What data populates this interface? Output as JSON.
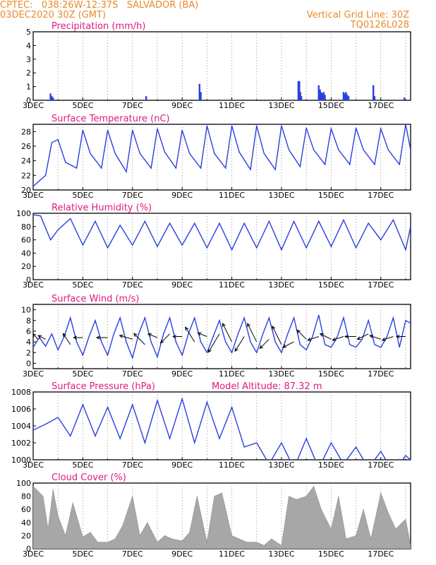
{
  "header": {
    "line1": "CPTEC:   038:26W-12:37S   SALVADOR (BA)",
    "line2": "03DEC2020 30Z (GMT)",
    "grid_note": "Vertical Grid Line: 30Z",
    "code": "TQ0126L028"
  },
  "colors": {
    "header_text": "#e8892a",
    "panel_title": "#e0197d",
    "line_series": "#2a3fe0",
    "bar_series": "#2a3fe0",
    "cloud_fill": "#a7a7a7",
    "wind_vectors": "#000000",
    "axis": "#000000"
  },
  "x_axis": {
    "tick_labels": [
      "3DEC",
      "5DEC",
      "7DEC",
      "9DEC",
      "11DEC",
      "13DEC",
      "15DEC",
      "17DEC"
    ],
    "start_day": 3,
    "end_day": 18.2
  },
  "chart_data": [
    {
      "type": "bar",
      "title": "Precipitation (mm/h)",
      "ylim": [
        0,
        5
      ],
      "yticks": [
        "0",
        "1",
        "2",
        "3",
        "4",
        "5"
      ],
      "x": [
        3.7,
        3.75,
        3.8,
        7.55,
        9.7,
        9.75,
        13.68,
        13.72,
        13.76,
        13.8,
        14.5,
        14.55,
        14.6,
        14.65,
        14.7,
        14.75,
        15.5,
        15.55,
        15.6,
        15.65,
        15.7,
        16.7,
        16.75,
        17.95
      ],
      "values": [
        0.5,
        0.3,
        0.2,
        0.3,
        1.2,
        0.6,
        1.4,
        1.4,
        0.6,
        0.3,
        1.1,
        0.8,
        0.6,
        0.5,
        0.6,
        0.4,
        0.6,
        0.5,
        0.6,
        0.4,
        0.3,
        1.1,
        0.3,
        0.2
      ]
    },
    {
      "type": "line",
      "title": "Surface Temperature (nC)",
      "ylim": [
        20,
        29
      ],
      "yticks": [
        "20",
        "22",
        "24",
        "26",
        "28"
      ],
      "x": [
        3.0,
        3.5,
        3.75,
        4.0,
        4.3,
        4.75,
        5.0,
        5.3,
        5.75,
        6.0,
        6.3,
        6.75,
        7.0,
        7.3,
        7.75,
        8.0,
        8.3,
        8.75,
        9.0,
        9.3,
        9.75,
        10.0,
        10.3,
        10.75,
        11.0,
        11.3,
        11.75,
        12.0,
        12.3,
        12.75,
        13.0,
        13.3,
        13.75,
        14.0,
        14.3,
        14.75,
        15.0,
        15.3,
        15.75,
        16.0,
        16.3,
        16.75,
        17.0,
        17.3,
        17.75,
        18.0,
        18.2
      ],
      "values": [
        20.5,
        22.0,
        26.5,
        26.9,
        23.8,
        23.0,
        28.2,
        25.0,
        23.0,
        28.2,
        25.0,
        22.5,
        28.2,
        25.0,
        23.0,
        28.4,
        25.2,
        23.0,
        28.2,
        25.0,
        23.0,
        28.8,
        25.0,
        23.0,
        28.8,
        25.2,
        22.8,
        28.8,
        25.0,
        22.8,
        28.8,
        25.5,
        23.2,
        28.5,
        25.5,
        23.5,
        28.4,
        25.5,
        23.5,
        28.5,
        25.5,
        23.5,
        28.4,
        25.5,
        23.5,
        29.0,
        25.5
      ]
    },
    {
      "type": "line",
      "title": "Relative Humidity (%)",
      "ylim": [
        0,
        100
      ],
      "yticks": [
        "0",
        "20",
        "40",
        "60",
        "80",
        "100"
      ],
      "x": [
        3.0,
        3.3,
        3.7,
        4.0,
        4.5,
        5.0,
        5.5,
        6.0,
        6.5,
        7.0,
        7.5,
        8.0,
        8.5,
        9.0,
        9.5,
        10.0,
        10.5,
        11.0,
        11.5,
        12.0,
        12.5,
        13.0,
        13.5,
        14.0,
        14.5,
        15.0,
        15.5,
        16.0,
        16.5,
        17.0,
        17.5,
        18.0,
        18.2
      ],
      "values": [
        98,
        96,
        60,
        75,
        92,
        52,
        88,
        48,
        82,
        52,
        88,
        50,
        85,
        52,
        85,
        48,
        85,
        45,
        85,
        48,
        88,
        45,
        88,
        48,
        88,
        50,
        90,
        48,
        85,
        60,
        90,
        45,
        80
      ]
    },
    {
      "type": "line",
      "title": "Surface Wind (m/s)",
      "ylim": [
        -1,
        11
      ],
      "yticks": [
        "0",
        "2",
        "4",
        "6",
        "8",
        "10"
      ],
      "x": [
        3.0,
        3.25,
        3.5,
        3.75,
        4.0,
        4.25,
        4.5,
        4.75,
        5.0,
        5.25,
        5.5,
        5.75,
        6.0,
        6.25,
        6.5,
        6.75,
        7.0,
        7.25,
        7.5,
        7.75,
        8.0,
        8.25,
        8.5,
        8.75,
        9.0,
        9.25,
        9.5,
        9.75,
        10.0,
        10.25,
        10.5,
        10.75,
        11.0,
        11.25,
        11.5,
        11.75,
        12.0,
        12.25,
        12.5,
        12.75,
        13.0,
        13.25,
        13.5,
        13.75,
        14.0,
        14.25,
        14.5,
        14.75,
        15.0,
        15.25,
        15.5,
        15.75,
        16.0,
        16.25,
        16.5,
        16.75,
        17.0,
        17.25,
        17.5,
        17.75,
        18.0,
        18.2
      ],
      "values": [
        3.0,
        4.8,
        3.2,
        5.5,
        2.5,
        5.0,
        8.5,
        4.0,
        1.5,
        5.0,
        8.0,
        4.0,
        1.5,
        5.5,
        8.5,
        4.0,
        1.0,
        5.5,
        8.5,
        4.0,
        1.2,
        5.5,
        8.5,
        4.0,
        1.5,
        5.5,
        8.5,
        4.0,
        2.0,
        5.0,
        8.0,
        4.0,
        2.0,
        5.5,
        8.5,
        4.0,
        2.0,
        5.5,
        8.5,
        4.0,
        2.0,
        5.5,
        8.5,
        3.5,
        2.5,
        5.0,
        9.0,
        3.5,
        3.0,
        5.0,
        8.5,
        3.5,
        3.0,
        4.5,
        8.0,
        3.5,
        3.0,
        5.0,
        8.5,
        3.0,
        8.0,
        7.5
      ],
      "vectors": {
        "x": [
          3.2,
          3.5,
          4.5,
          5.0,
          6.0,
          7.0,
          7.5,
          8.0,
          8.5,
          9.0,
          9.5,
          10.0,
          10.5,
          11.0,
          11.5,
          12.0,
          12.5,
          13.0,
          13.5,
          14.0,
          14.5,
          15.0,
          15.5,
          16.0,
          16.5,
          17.0,
          17.5,
          18.0
        ],
        "y": [
          4.5,
          4.5,
          3.5,
          4.8,
          4.8,
          4.5,
          3.5,
          4.8,
          5.5,
          5.0,
          4.0,
          5.0,
          5.5,
          4.0,
          5.0,
          4.0,
          4.5,
          3.5,
          4.0,
          4.5,
          5.0,
          4.5,
          5.0,
          5.0,
          5.5,
          4.5,
          5.0,
          5.0
        ],
        "u": [
          0.3,
          0.4,
          0.4,
          0.5,
          0.6,
          0.7,
          0.6,
          0.5,
          0.5,
          0.5,
          0.5,
          0.5,
          0.6,
          0.5,
          0.5,
          0.5,
          0.5,
          0.5,
          0.6,
          0.5,
          0.6,
          0.6,
          0.6,
          0.6,
          0.6,
          0.6,
          0.6,
          0.5
        ],
        "v": [
          0.3,
          0.2,
          0.6,
          0.0,
          0.0,
          0.2,
          0.6,
          0.2,
          -0.5,
          0.0,
          0.8,
          0.2,
          -1.0,
          1.0,
          -0.8,
          1.0,
          -0.5,
          1.0,
          -0.3,
          0.5,
          -0.2,
          0.3,
          -0.2,
          0.0,
          -0.3,
          0.2,
          -0.2,
          0.0
        ]
      }
    },
    {
      "type": "line",
      "title": "Surface Pressure (hPa)",
      "annotation": "Model Altitude: 87.32 m",
      "ylim": [
        1000,
        1008
      ],
      "yticks": [
        "1000",
        "1002",
        "1004",
        "1006",
        "1008"
      ],
      "x": [
        3.0,
        3.5,
        4.0,
        4.5,
        5.0,
        5.5,
        6.0,
        6.5,
        7.0,
        7.5,
        8.0,
        8.5,
        9.0,
        9.5,
        10.0,
        10.5,
        11.0,
        11.5,
        12.0,
        12.5,
        13.0,
        13.5,
        14.0,
        14.5,
        15.0,
        15.5,
        16.0,
        16.5,
        17.0,
        17.5,
        18.0,
        18.2
      ],
      "values": [
        1003.5,
        1004.2,
        1005.0,
        1002.8,
        1006.5,
        1002.8,
        1006.2,
        1002.5,
        1006.5,
        1002.0,
        1007.0,
        1002.5,
        1007.2,
        1002.0,
        1006.8,
        1002.5,
        1006.2,
        1001.5,
        1002.0,
        999.5,
        1002.0,
        999.0,
        1002.5,
        999.0,
        1002.0,
        999.5,
        1001.5,
        999.0,
        1001.0,
        998.5,
        1000.5,
        1000.0
      ]
    },
    {
      "type": "area",
      "title": "Cloud Cover (%)",
      "ylim": [
        0,
        100
      ],
      "yticks": [
        "0",
        "20",
        "40",
        "60",
        "80",
        "100"
      ],
      "x": [
        3.0,
        3.4,
        3.6,
        3.8,
        4.0,
        4.3,
        4.6,
        5.0,
        5.3,
        5.6,
        6.0,
        6.3,
        6.6,
        7.0,
        7.3,
        7.6,
        8.0,
        8.3,
        8.6,
        9.0,
        9.3,
        9.6,
        10.0,
        10.3,
        10.6,
        11.0,
        11.3,
        11.6,
        12.0,
        12.3,
        12.6,
        13.0,
        13.3,
        13.6,
        14.0,
        14.3,
        14.6,
        15.0,
        15.3,
        15.6,
        16.0,
        16.3,
        16.6,
        17.0,
        17.3,
        17.6,
        18.0,
        18.2
      ],
      "values": [
        95,
        80,
        30,
        90,
        50,
        20,
        70,
        18,
        25,
        10,
        10,
        15,
        35,
        80,
        20,
        40,
        10,
        20,
        15,
        12,
        25,
        80,
        10,
        80,
        85,
        20,
        15,
        10,
        10,
        5,
        15,
        5,
        80,
        75,
        80,
        95,
        60,
        30,
        80,
        15,
        20,
        60,
        15,
        85,
        55,
        30,
        45,
        5
      ]
    }
  ]
}
